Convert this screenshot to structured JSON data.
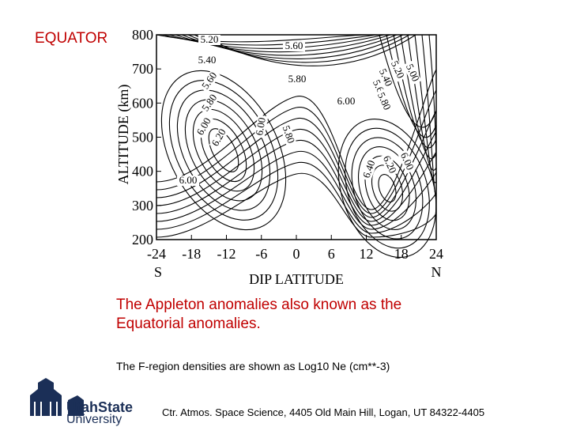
{
  "slide": {
    "heading": "EQUATOR",
    "figure": {
      "y_label": "ALTITUDE (km)",
      "x_label": "DIP LATITUDE",
      "x_left_end": "S",
      "x_right_end": "N",
      "xlim": [
        -24,
        24
      ],
      "xticks": [
        -24,
        -18,
        -12,
        -6,
        0,
        6,
        12,
        18,
        24
      ],
      "ylim": [
        200,
        800
      ],
      "yticks": [
        200,
        300,
        400,
        500,
        600,
        700,
        800
      ],
      "contour_labels": [
        "5.20",
        "5.60",
        "5.40",
        "5.80",
        "5.60",
        "5.80",
        "6.00",
        "6.20",
        "6.00",
        "5.80",
        "6.00",
        "6.00",
        "5.00",
        "5.20",
        "5.40",
        "5.60",
        "5.80",
        "6.40",
        "6.20",
        "6.00"
      ]
    },
    "caption": "The Appleton anomalies also known as the Equatorial anomalies.",
    "note": "The F-region densities are shown as Log10 Ne  (cm**-3)",
    "logo_top": "UtahState",
    "logo_bottom": "University",
    "footer": "Ctr. Atmos. Space Science, 4405 Old Main Hill, Logan, UT  84322-4405"
  }
}
